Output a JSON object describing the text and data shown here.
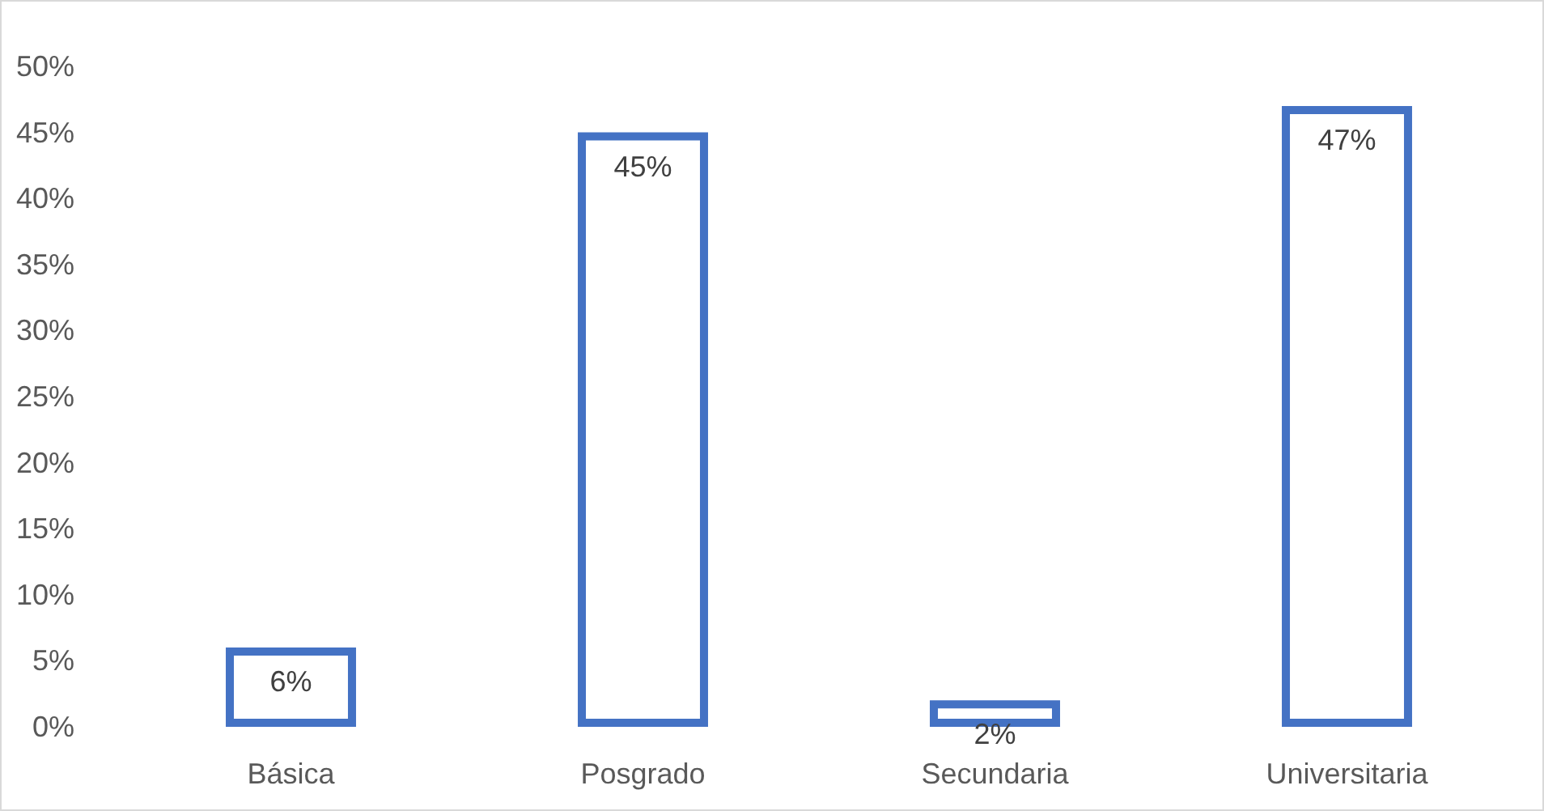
{
  "chart_data": {
    "type": "bar",
    "categories": [
      "Básica",
      "Posgrado",
      "Secundaria",
      "Universitaria"
    ],
    "values": [
      6,
      45,
      2,
      47
    ],
    "value_labels": [
      "6%",
      "45%",
      "2%",
      "47%"
    ],
    "color": "#4472c4",
    "ylim": [
      0,
      50
    ],
    "yticks": [
      {
        "value": 0,
        "label": "0%"
      },
      {
        "value": 5,
        "label": "5%"
      },
      {
        "value": 10,
        "label": "10%"
      },
      {
        "value": 15,
        "label": "15%"
      },
      {
        "value": 20,
        "label": "20%"
      },
      {
        "value": 25,
        "label": "25%"
      },
      {
        "value": 30,
        "label": "30%"
      },
      {
        "value": 35,
        "label": "35%"
      },
      {
        "value": 40,
        "label": "40%"
      },
      {
        "value": 45,
        "label": "45%"
      },
      {
        "value": 50,
        "label": "50%"
      }
    ],
    "grid": false
  }
}
